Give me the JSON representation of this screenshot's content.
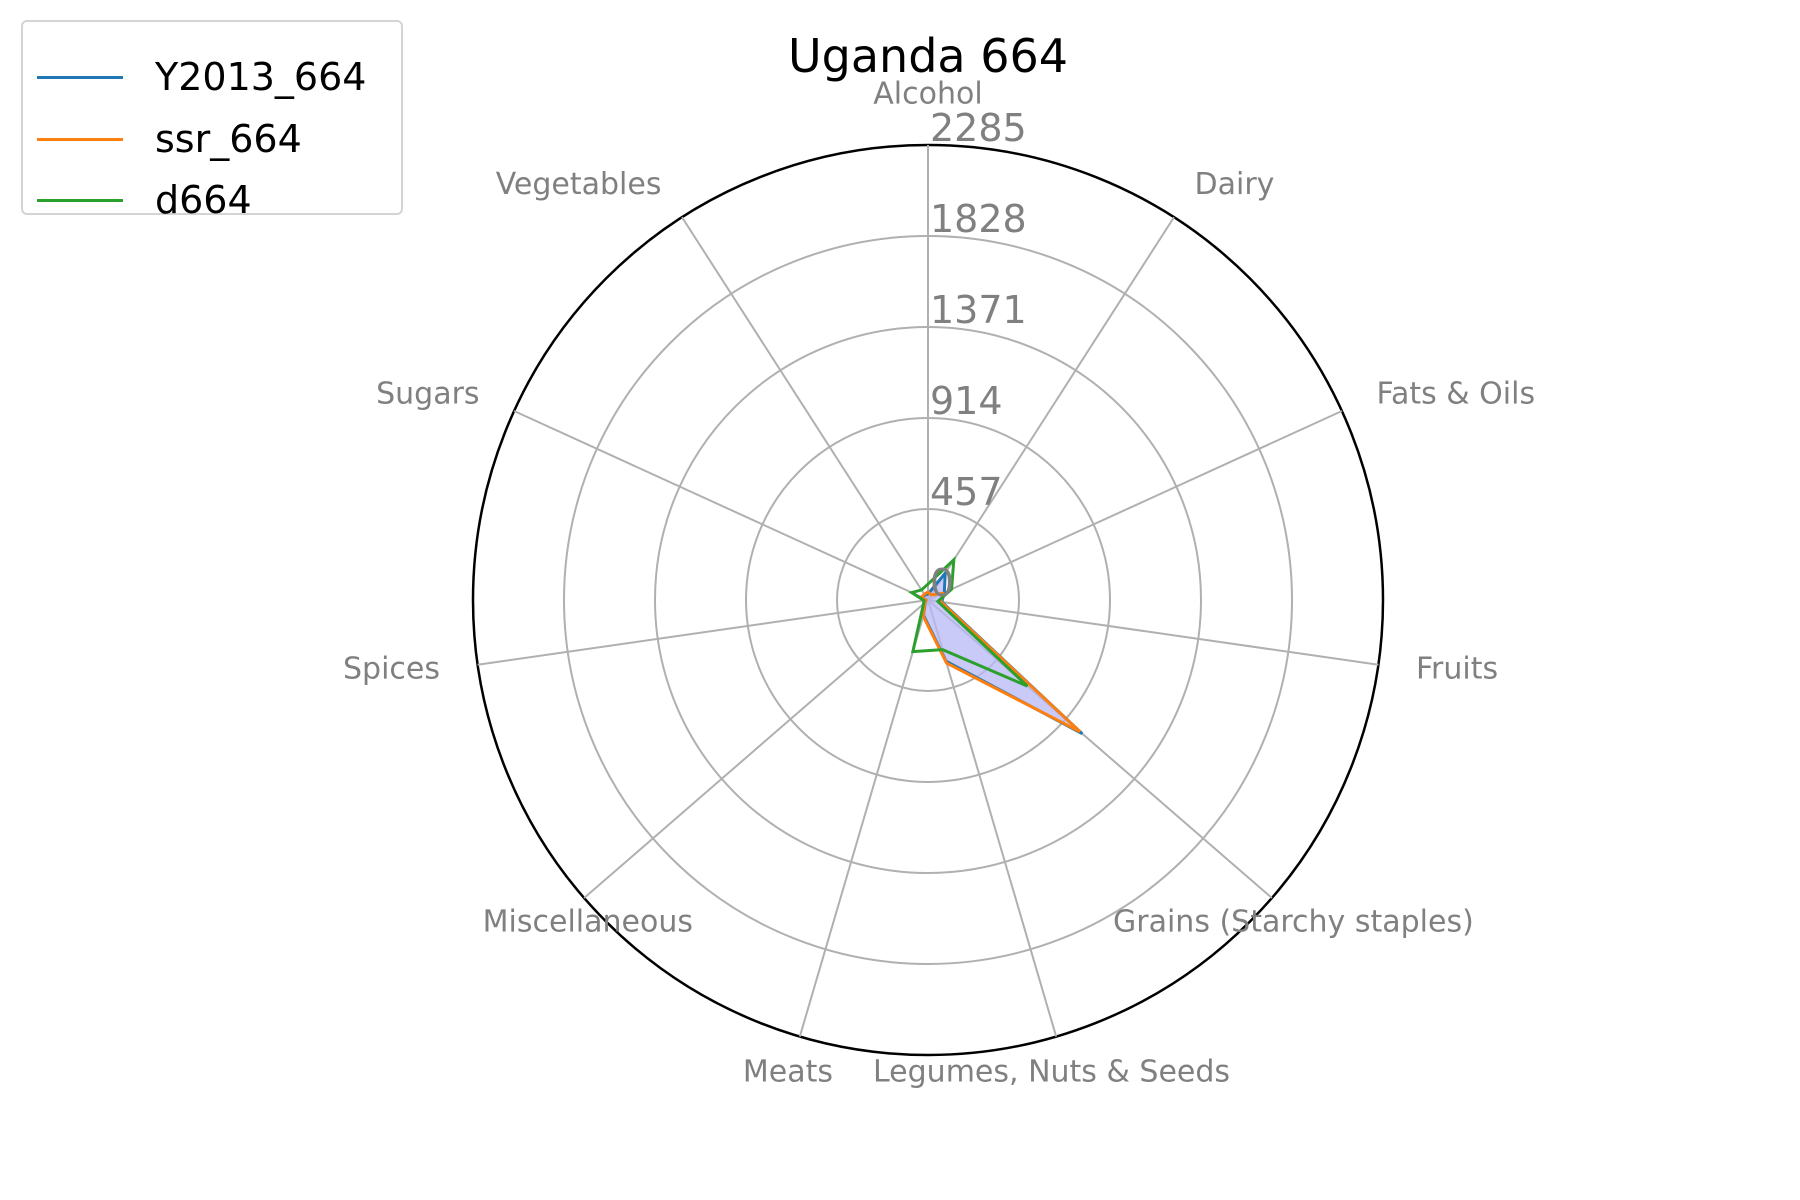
{
  "chart_data": {
    "type": "radar",
    "title": "Uganda 664",
    "categories": [
      "Alcohol",
      "Dairy",
      "Fats & Oils",
      "Fruits",
      "Grains (Starchy staples)",
      "Legumes, Nuts & Seeds",
      "Meats",
      "Miscellaneous",
      "Spices",
      "Sugars",
      "Vegetables"
    ],
    "radial_ticks": [
      "0",
      "457",
      "914",
      "1371",
      "1828",
      "2285"
    ],
    "radial_tick_values": [
      0,
      457,
      914,
      1371,
      1828,
      2285
    ],
    "rmax": 2285,
    "series": [
      {
        "name": "Y2013_664",
        "color": "#1f77b4",
        "values": [
          30,
          160,
          90,
          70,
          1025,
          320,
          80,
          20,
          10,
          35,
          30
        ]
      },
      {
        "name": "ssr_664",
        "color": "#ff7f0e",
        "values": [
          40,
          30,
          80,
          65,
          1010,
          330,
          85,
          20,
          10,
          35,
          35
        ]
      },
      {
        "name": "d664",
        "color": "#2ca02c",
        "values": [
          80,
          240,
          130,
          50,
          660,
          260,
          270,
          30,
          20,
          90,
          60
        ]
      }
    ],
    "fill_color": "#b8b8f5",
    "grid": true,
    "legend_position": "top-left"
  }
}
